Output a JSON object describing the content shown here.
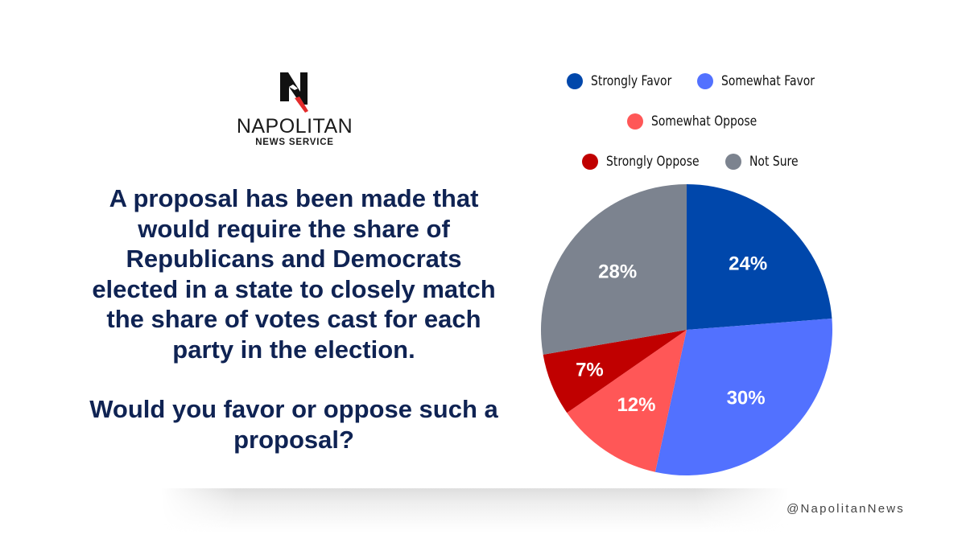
{
  "brand": {
    "name": "NAPOLITAN",
    "subtitle": "NEWS SERVICE",
    "handle": "@NapolitanNews",
    "logo_icon": "napolitan-n-eagle-logo"
  },
  "question": {
    "lines": [
      "A proposal has been made that would require the share of Republicans and Democrats elected in a state to closely match the share of votes cast for each party in the election.",
      "Would you favor or oppose such a proposal?"
    ]
  },
  "colors": {
    "question_text": "#0f2353",
    "strongly_favor": "#0047ab",
    "somewhat_favor": "#5271ff",
    "somewhat_oppose": "#ff5757",
    "strongly_oppose": "#c00000",
    "not_sure": "#7c838f"
  },
  "chart_data": {
    "type": "pie",
    "title": "",
    "start_angle": "12 o'clock, clockwise",
    "legend_position": "top-right",
    "slices": [
      {
        "name": "Strongly Favor",
        "value": 24,
        "label": "24%",
        "color": "#0047ab"
      },
      {
        "name": "Somewhat Favor",
        "value": 30,
        "label": "30%",
        "color": "#5271ff"
      },
      {
        "name": "Somewhat Oppose",
        "value": 12,
        "label": "12%",
        "color": "#ff5757"
      },
      {
        "name": "Strongly Oppose",
        "value": 7,
        "label": "7%",
        "color": "#c00000"
      },
      {
        "name": "Not Sure",
        "value": 28,
        "label": "28%",
        "color": "#7c838f"
      }
    ],
    "legend": [
      "Strongly Favor",
      "Somewhat Favor",
      "Somewhat Oppose",
      "Strongly Oppose",
      "Not Sure"
    ]
  }
}
